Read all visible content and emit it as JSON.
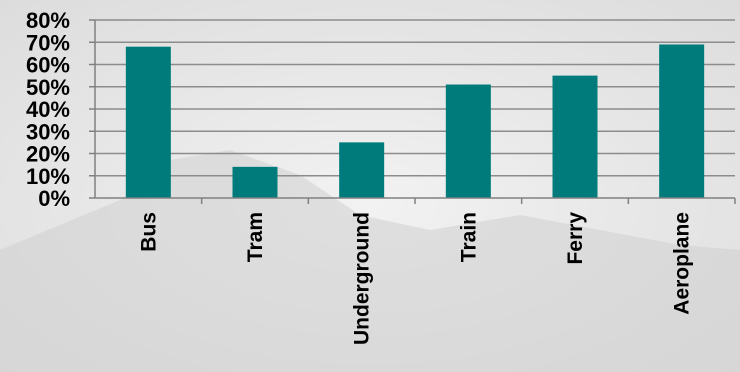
{
  "chart_data": {
    "type": "bar",
    "title": "",
    "xlabel": "",
    "ylabel": "",
    "categories": [
      "Bus",
      "Tram",
      "Underground",
      "Train",
      "Ferry",
      "Aeroplane"
    ],
    "values": [
      68,
      14,
      25,
      51,
      55,
      69
    ],
    "ylim": [
      0,
      80
    ],
    "yticks": [
      {
        "value": 0,
        "label": "0%"
      },
      {
        "value": 10,
        "label": "10%"
      },
      {
        "value": 20,
        "label": "20%"
      },
      {
        "value": 30,
        "label": "30%"
      },
      {
        "value": 40,
        "label": "40%"
      },
      {
        "value": 50,
        "label": "50%"
      },
      {
        "value": 60,
        "label": "60%"
      },
      {
        "value": 70,
        "label": "70%"
      },
      {
        "value": 80,
        "label": "80%"
      }
    ],
    "grid": true,
    "legend": "none",
    "colors": {
      "bar": "#007b7b",
      "grid": "#8c8c8c",
      "axis": "#808080",
      "background": "#e6e6e6",
      "text": "#000000"
    }
  }
}
